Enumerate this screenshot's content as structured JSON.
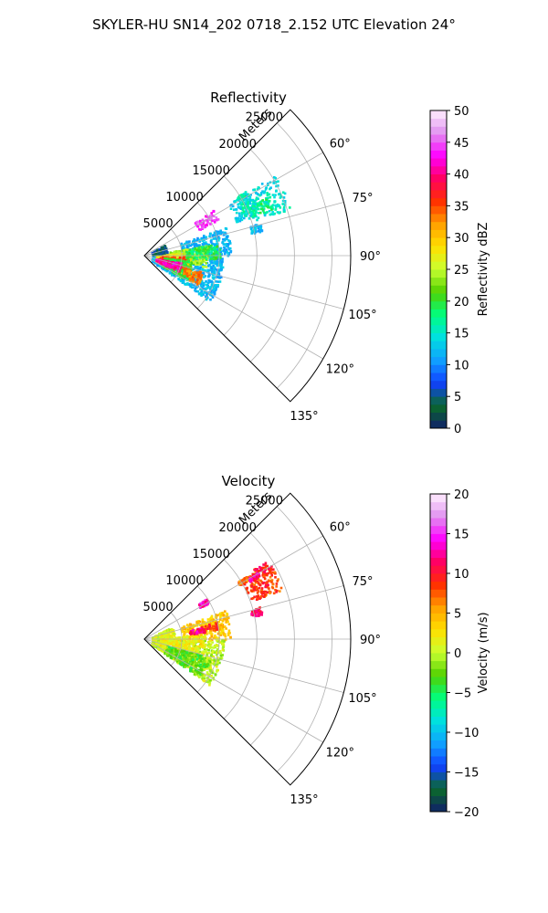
{
  "figure_title": "SKYLER-HU  SN14_202  0718_2.152 UTC Elevation 24°",
  "chart_data": [
    {
      "type": "heatmap",
      "subtype": "polar-sector (PPI)",
      "title": "Reflectivity",
      "radial_label": "Meters",
      "radial_ticks": [
        "5000",
        "10000",
        "15000",
        "20000",
        "25000"
      ],
      "r_range": [
        0,
        27500
      ],
      "angle_range_deg": [
        45,
        135
      ],
      "angle_ticks": [
        "60°",
        "75°",
        "90°",
        "105°",
        "120°",
        "135°"
      ],
      "grid": true,
      "colorbar": {
        "label": "Reflectivity dBZ",
        "range": [
          0,
          50
        ],
        "ticks": [
          "0",
          "5",
          "10",
          "15",
          "20",
          "25",
          "30",
          "35",
          "40",
          "45",
          "50"
        ],
        "stops": [
          "#10206a",
          "#0a6a2a",
          "#1040ff",
          "#10a0ff",
          "#00e0e0",
          "#00ff80",
          "#50d000",
          "#c8ff30",
          "#ffe000",
          "#ffa000",
          "#ff3000",
          "#ff0060",
          "#ff00ff",
          "#e090f0",
          "#fff0ff"
        ]
      },
      "echo_regions": [
        {
          "az": [
            57,
            59
          ],
          "range": [
            14500,
            16000
          ],
          "value": 17
        },
        {
          "az": [
            62,
            72
          ],
          "range": [
            15500,
            20500
          ],
          "value": 15
        },
        {
          "az": [
            58,
            70
          ],
          "range": [
            13000,
            16000
          ],
          "value": 13
        },
        {
          "az": [
            64,
            70
          ],
          "range": [
            15000,
            18500
          ],
          "value": 18
        },
        {
          "az": [
            57,
            68
          ],
          "range": [
            14000,
            16000
          ],
          "value": 16
        },
        {
          "az": [
            58,
            62
          ],
          "range": [
            16000,
            20500
          ],
          "value": 14
        },
        {
          "az": [
            74,
            78
          ],
          "range": [
            14500,
            16000
          ],
          "value": 12
        },
        {
          "az": [
            70,
            90
          ],
          "range": [
            5000,
            11500
          ],
          "value": 12
        },
        {
          "az": [
            90,
            125
          ],
          "range": [
            1000,
            10500
          ],
          "value": 12
        },
        {
          "az": [
            80,
            100
          ],
          "range": [
            2500,
            8500
          ],
          "value": 24
        },
        {
          "az": [
            85,
            115
          ],
          "range": [
            1500,
            6000
          ],
          "value": 28
        },
        {
          "az": [
            90,
            110
          ],
          "range": [
            2000,
            5500
          ],
          "value": 35
        },
        {
          "az": [
            95,
            120
          ],
          "range": [
            2500,
            6500
          ],
          "value": 20
        },
        {
          "az": [
            100,
            115
          ],
          "range": [
            1500,
            5000
          ],
          "value": 41
        },
        {
          "az": [
            105,
            118
          ],
          "range": [
            5500,
            8000
          ],
          "value": 33
        },
        {
          "az": [
            80,
            92
          ],
          "range": [
            5500,
            10000
          ],
          "value": 19
        },
        {
          "az": [
            60,
            80
          ],
          "range": [
            1000,
            3000
          ],
          "value": 5
        },
        {
          "az": [
            56,
            64
          ],
          "range": [
            8000,
            11000
          ],
          "value": 44
        }
      ]
    },
    {
      "type": "heatmap",
      "subtype": "polar-sector (PPI)",
      "title": "Velocity",
      "radial_label": "Meters",
      "radial_ticks": [
        "5000",
        "10000",
        "15000",
        "20000",
        "25000"
      ],
      "r_range": [
        0,
        27500
      ],
      "angle_range_deg": [
        45,
        135
      ],
      "angle_ticks": [
        "60°",
        "75°",
        "90°",
        "105°",
        "120°",
        "135°"
      ],
      "grid": true,
      "colorbar": {
        "label": "Velocity (m/s)",
        "range": [
          -20,
          20
        ],
        "ticks": [
          "−20",
          "−15",
          "−10",
          "−5",
          "0",
          "5",
          "10",
          "15",
          "20"
        ],
        "stops": [
          "#10206a",
          "#0a6a2a",
          "#1040ff",
          "#10a0ff",
          "#00e0e0",
          "#00ff80",
          "#50d000",
          "#c8ff30",
          "#ffe000",
          "#ffa000",
          "#ff3000",
          "#ff0060",
          "#ff00ff",
          "#e090f0",
          "#fff0ff"
        ]
      },
      "echo_regions": [
        {
          "az": [
            58,
            70
          ],
          "range": [
            15000,
            19500
          ],
          "value": 8
        },
        {
          "az": [
            64,
            70
          ],
          "range": [
            15500,
            18000
          ],
          "value": 9
        },
        {
          "az": [
            57,
            62
          ],
          "range": [
            16500,
            19500
          ],
          "value": 10
        },
        {
          "az": [
            58,
            60
          ],
          "range": [
            14500,
            16000
          ],
          "value": 7
        },
        {
          "az": [
            59,
            61
          ],
          "range": [
            16000,
            17500
          ],
          "value": 12
        },
        {
          "az": [
            74,
            78
          ],
          "range": [
            14500,
            16000
          ],
          "value": 11
        },
        {
          "az": [
            70,
            90
          ],
          "range": [
            5000,
            11500
          ],
          "value": 4
        },
        {
          "az": [
            65,
            90
          ],
          "range": [
            1000,
            4000
          ],
          "value": 1
        },
        {
          "az": [
            90,
            125
          ],
          "range": [
            1000,
            10500
          ],
          "value": 0
        },
        {
          "az": [
            85,
            110
          ],
          "range": [
            2000,
            8000
          ],
          "value": 2
        },
        {
          "az": [
            105,
            125
          ],
          "range": [
            3000,
            9000
          ],
          "value": -3
        },
        {
          "az": [
            76,
            82
          ],
          "range": [
            7000,
            10000
          ],
          "value": 9
        },
        {
          "az": [
            78,
            83
          ],
          "range": [
            6000,
            8000
          ],
          "value": 12
        },
        {
          "az": [
            56,
            60
          ],
          "range": [
            8500,
            10000
          ],
          "value": 13
        }
      ]
    }
  ]
}
